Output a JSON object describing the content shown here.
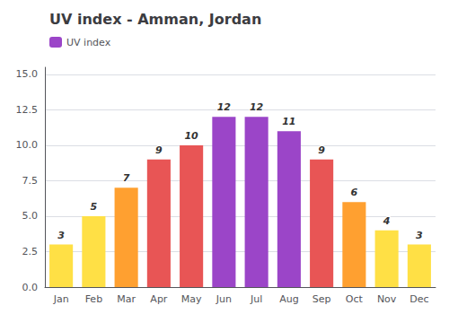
{
  "chart_data": {
    "type": "bar",
    "title": "UV index - Amman, Jordan",
    "categories": [
      "Jan",
      "Feb",
      "Mar",
      "Apr",
      "May",
      "Jun",
      "Jul",
      "Aug",
      "Sep",
      "Oct",
      "Nov",
      "Dec"
    ],
    "series": [
      {
        "name": "UV index",
        "color": "#9B45C8",
        "values": [
          3,
          5,
          7,
          9,
          10,
          12,
          12,
          11,
          9,
          6,
          4,
          3
        ],
        "colors": [
          "#FFE045",
          "#FFE045",
          "#FFA030",
          "#E85555",
          "#E85555",
          "#9B45C8",
          "#9B45C8",
          "#9B45C8",
          "#E85555",
          "#FFA030",
          "#FFE045",
          "#FFE045"
        ]
      }
    ],
    "ylim": [
      0,
      15.5
    ],
    "yticks": [
      {
        "value": 0.0,
        "label": "0.0"
      },
      2.5,
      {
        "value": 5.0,
        "label": "5.0"
      },
      7.5,
      {
        "value": 10.0,
        "label": "10.0"
      },
      12.5,
      {
        "value": 15.0,
        "label": "15.0"
      }
    ],
    "grid": true,
    "legend": "upper left",
    "data_labels": true
  }
}
